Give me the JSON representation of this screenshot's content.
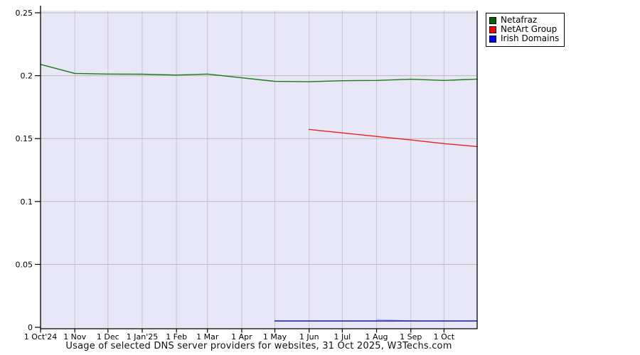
{
  "chart_data": {
    "type": "line",
    "title": "Usage of selected DNS server providers for websites, 31 Oct 2025, W3Techs.com",
    "xlabel": "",
    "ylabel": "",
    "ylim": [
      0,
      0.25
    ],
    "x_domain_days": [
      0,
      395
    ],
    "grid": true,
    "legend_position": "top-right",
    "y_ticks": [
      {
        "value": 0,
        "label": "0"
      },
      {
        "value": 0.05,
        "label": "0.05"
      },
      {
        "value": 0.1,
        "label": "0.1"
      },
      {
        "value": 0.15,
        "label": "0.15"
      },
      {
        "value": 0.2,
        "label": "0.2"
      },
      {
        "value": 0.25,
        "label": "0.25"
      }
    ],
    "x_ticks": [
      {
        "day": 0,
        "label": "1 Oct'24"
      },
      {
        "day": 31,
        "label": "1 Nov"
      },
      {
        "day": 61,
        "label": "1 Dec"
      },
      {
        "day": 92,
        "label": "1 Jan'25"
      },
      {
        "day": 123,
        "label": "1 Feb"
      },
      {
        "day": 151,
        "label": "1 Mar"
      },
      {
        "day": 182,
        "label": "1 Apr"
      },
      {
        "day": 212,
        "label": "1 May"
      },
      {
        "day": 243,
        "label": "1 Jun"
      },
      {
        "day": 273,
        "label": "1 Jul"
      },
      {
        "day": 304,
        "label": "1 Aug"
      },
      {
        "day": 335,
        "label": "1 Sep"
      },
      {
        "day": 365,
        "label": "1 Oct"
      }
    ],
    "series": [
      {
        "name": "Netafraz",
        "swatch_color": "#006600",
        "line_color": "#177a17",
        "points": [
          [
            0,
            0.209
          ],
          [
            31,
            0.2018
          ],
          [
            61,
            0.2013
          ],
          [
            92,
            0.2012
          ],
          [
            123,
            0.2005
          ],
          [
            151,
            0.2013
          ],
          [
            182,
            0.1983
          ],
          [
            212,
            0.1955
          ],
          [
            243,
            0.1952
          ],
          [
            273,
            0.196
          ],
          [
            304,
            0.1962
          ],
          [
            335,
            0.1972
          ],
          [
            365,
            0.1962
          ],
          [
            395,
            0.1973
          ]
        ]
      },
      {
        "name": "NetArt Group",
        "swatch_color": "#ff0000",
        "line_color": "#ee1f1f",
        "points": [
          [
            243,
            0.1573
          ],
          [
            273,
            0.1545
          ],
          [
            304,
            0.1517
          ],
          [
            335,
            0.1489
          ],
          [
            365,
            0.146
          ],
          [
            395,
            0.1437
          ]
        ]
      },
      {
        "name": "Irish Domains",
        "swatch_color": "#0000ff",
        "line_color": "#0000cc",
        "points": [
          [
            212,
            0.005
          ],
          [
            243,
            0.005
          ],
          [
            273,
            0.005
          ],
          [
            304,
            0.005
          ],
          [
            335,
            0.005
          ],
          [
            365,
            0.005
          ],
          [
            395,
            0.005
          ]
        ]
      }
    ],
    "artifacts": [
      {
        "type": "faint-line",
        "near_series": "Irish Domains",
        "from": [
          304,
          0.0062
        ],
        "to": [
          335,
          0.0051
        ],
        "color": "#a9b1e8"
      }
    ],
    "colors": {
      "plot_bg": "#e7e7f8",
      "grid_h": "#b9b9b9",
      "grid_v": "#c6c6c6",
      "axis": "#000000",
      "text": "#000000"
    }
  }
}
